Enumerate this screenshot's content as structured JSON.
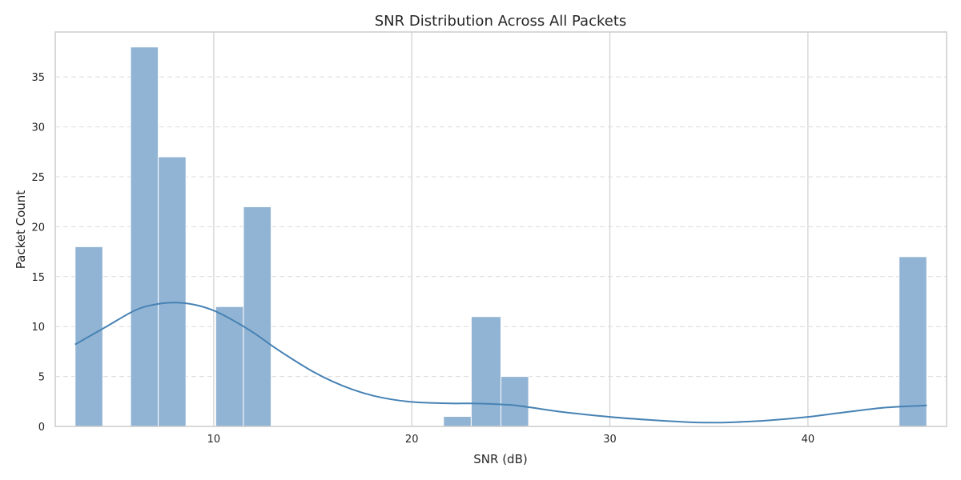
{
  "chart_data": {
    "type": "bar",
    "title": "SNR Distribution Across All Packets",
    "xlabel": "SNR (dB)",
    "ylabel": "Packet Count",
    "xlim": [
      2,
      47
    ],
    "ylim": [
      0,
      39.5
    ],
    "xticks": [
      10,
      20,
      30,
      40
    ],
    "yticks": [
      0,
      5,
      10,
      15,
      20,
      25,
      30,
      35
    ],
    "x_grid": true,
    "y_grid": "dashed",
    "bar_color": "#92b4d4",
    "line_color": "#4682b4",
    "bins": [
      {
        "x0": 3.0,
        "x1": 4.4,
        "count": 18
      },
      {
        "x0": 5.8,
        "x1": 7.2,
        "count": 38
      },
      {
        "x0": 7.2,
        "x1": 8.6,
        "count": 27
      },
      {
        "x0": 10.1,
        "x1": 11.5,
        "count": 12
      },
      {
        "x0": 11.5,
        "x1": 12.9,
        "count": 22
      },
      {
        "x0": 21.6,
        "x1": 23.0,
        "count": 1
      },
      {
        "x0": 23.0,
        "x1": 24.5,
        "count": 11
      },
      {
        "x0": 24.5,
        "x1": 25.9,
        "count": 5
      },
      {
        "x0": 44.6,
        "x1": 46.0,
        "count": 17
      }
    ],
    "kde": {
      "x": [
        3.0,
        4.5,
        6.0,
        7.0,
        8.0,
        9.0,
        10.0,
        11.0,
        12.0,
        13.0,
        14.0,
        15.0,
        16.0,
        17.0,
        18.0,
        19.0,
        20.0,
        21.0,
        22.0,
        23.0,
        24.0,
        25.0,
        26.0,
        27.0,
        28.0,
        30.0,
        32.0,
        34.0,
        35.0,
        36.0,
        38.0,
        40.0,
        42.0,
        44.0,
        46.0
      ],
      "y": [
        8.2,
        9.9,
        11.6,
        12.2,
        12.4,
        12.2,
        11.6,
        10.6,
        9.4,
        8.0,
        6.7,
        5.5,
        4.5,
        3.7,
        3.1,
        2.7,
        2.45,
        2.35,
        2.3,
        2.3,
        2.25,
        2.15,
        1.9,
        1.6,
        1.35,
        0.95,
        0.65,
        0.42,
        0.38,
        0.4,
        0.6,
        0.95,
        1.45,
        1.9,
        2.1
      ]
    }
  }
}
